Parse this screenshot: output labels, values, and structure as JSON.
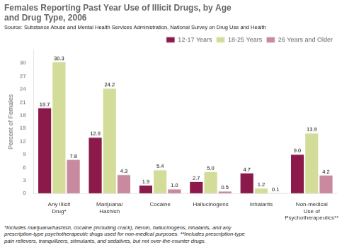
{
  "chart_data": {
    "type": "bar",
    "title": "Females Reporting Past Year Use of Illicit Drugs, by Age\nand Drug Type, 2006",
    "subtitle": "Source: Substance Abuse and Mental Health Services Administration, National Survey on Drug Use and Health",
    "footnote": "*Includes marijuana/hashish, cocaine (including crack), heroin, hallucinogens, inhalants, and any\nprescription-type psychotherapeutic drugs used for non-medical purposes. **Includes prescription-type\npain relievers, tranquilizers, stimulants, and sedatives, but not over-the-counter drugs.",
    "ylabel": "Percent of Females",
    "categories": [
      "Any Illicit\nDrug*",
      "Marijuana/\nHashish",
      "Cocaine",
      "Hallucinogens",
      "Inhalants",
      "Non-medical\nUse of\nPsychotherapeutics**"
    ],
    "series": [
      {
        "name": "12-17 Years",
        "color": "#8B1A4A",
        "values": [
          19.7,
          12.9,
          1.9,
          2.7,
          4.7,
          9.0
        ],
        "value_labels": [
          "19.7",
          "12.9",
          "1.9",
          "2.7",
          "4.7",
          "9.0"
        ]
      },
      {
        "name": "18-25 Years",
        "color": "#D4DC9A",
        "values": [
          30.3,
          24.2,
          5.4,
          5.0,
          1.2,
          13.9
        ],
        "value_labels": [
          "30.3",
          "24.2",
          "5.4",
          "5.0",
          "1.2",
          "13.9"
        ]
      },
      {
        "name": "26 Years and Older",
        "color": "#C9899E",
        "values": [
          7.8,
          4.3,
          1.0,
          0.5,
          0.1,
          4.2
        ],
        "value_labels": [
          "7.8",
          "4.3",
          "1.0",
          "0.5",
          "0.1",
          "4.2"
        ]
      }
    ],
    "ylim": [
      0,
      33
    ],
    "yticks": [
      0,
      3,
      6,
      9,
      12,
      15,
      18,
      21,
      24,
      27,
      30
    ],
    "grid": false,
    "legend": "upper right",
    "data_labels": true
  }
}
